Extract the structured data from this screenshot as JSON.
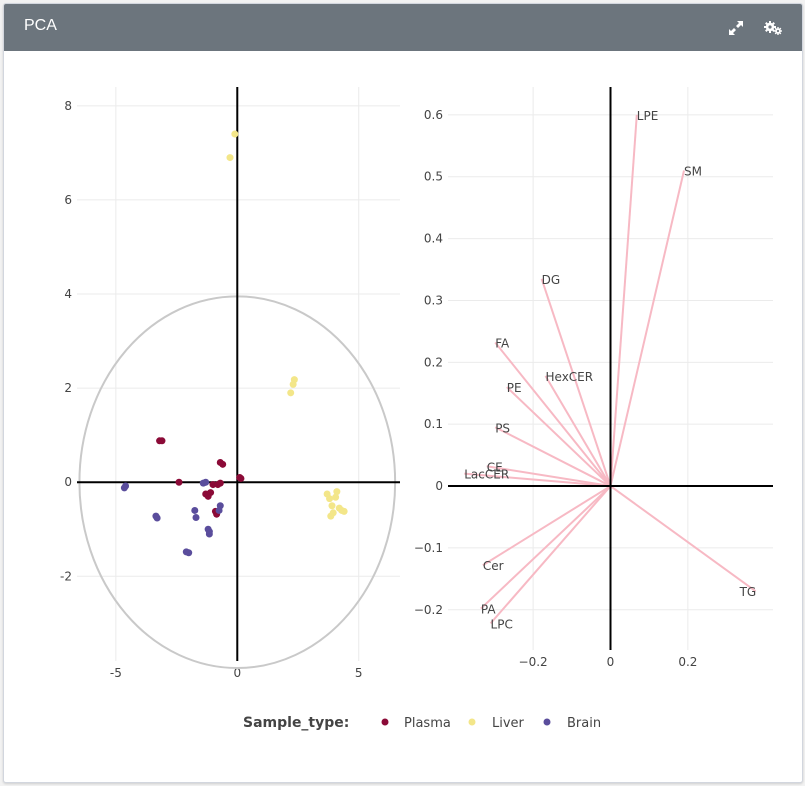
{
  "card": {
    "title": "PCA"
  },
  "icons": {
    "expand": "expand-icon",
    "settings": "gears-icon"
  },
  "colors": {
    "header_bg": "#6c757d",
    "plasma": "#8b0a37",
    "liver": "#f3e689",
    "brain": "#5a4d9c",
    "ellipse": "#c9c9c9",
    "loading_line": "#f7b9c4",
    "grid": "#ebebeb"
  },
  "legend": {
    "title": "Sample_type:",
    "items": [
      {
        "label": "Plasma",
        "color": "#8b0a37"
      },
      {
        "label": "Liver",
        "color": "#f3e689"
      },
      {
        "label": "Brain",
        "color": "#5a4d9c"
      }
    ]
  },
  "chart_data": [
    {
      "type": "scatter",
      "title": "",
      "xlabel": "",
      "ylabel": "",
      "xlim": [
        -6.6,
        6.7
      ],
      "ylim": [
        -3.8,
        8.4
      ],
      "xticks": [
        -5,
        0,
        5
      ],
      "yticks": [
        -2,
        0,
        2,
        4,
        6,
        8
      ],
      "grid": true,
      "zero_lines": true,
      "ellipse": {
        "cx": 0,
        "cy": 0,
        "rx": 6.5,
        "ry": 3.95
      },
      "series": [
        {
          "name": "Plasma",
          "color": "#8b0a37",
          "points": [
            [
              -3.2,
              0.88
            ],
            [
              -3.1,
              0.88
            ],
            [
              -2.4,
              0.0
            ],
            [
              -0.7,
              0.42
            ],
            [
              -0.6,
              0.38
            ],
            [
              -1.3,
              -0.25
            ],
            [
              -1.2,
              -0.3
            ],
            [
              -1.1,
              -0.22
            ],
            [
              -1.0,
              -0.05
            ],
            [
              -0.8,
              -0.05
            ],
            [
              -0.7,
              -0.02
            ],
            [
              -0.9,
              -0.62
            ],
            [
              -0.85,
              -0.68
            ],
            [
              0.1,
              0.1
            ],
            [
              0.15,
              0.08
            ]
          ]
        },
        {
          "name": "Liver",
          "color": "#f3e689",
          "points": [
            [
              -0.1,
              7.4
            ],
            [
              -0.3,
              6.9
            ],
            [
              2.35,
              2.18
            ],
            [
              2.3,
              2.08
            ],
            [
              2.2,
              1.9
            ],
            [
              3.7,
              -0.25
            ],
            [
              3.8,
              -0.35
            ],
            [
              3.9,
              -0.5
            ],
            [
              3.95,
              -0.65
            ],
            [
              3.85,
              -0.72
            ],
            [
              4.1,
              -0.2
            ],
            [
              4.2,
              -0.55
            ],
            [
              4.3,
              -0.6
            ],
            [
              4.4,
              -0.62
            ],
            [
              4.05,
              -0.32
            ]
          ]
        },
        {
          "name": "Brain",
          "color": "#5a4d9c",
          "points": [
            [
              -4.6,
              -0.08
            ],
            [
              -4.65,
              -0.12
            ],
            [
              -3.35,
              -0.72
            ],
            [
              -3.3,
              -0.76
            ],
            [
              -1.4,
              -0.02
            ],
            [
              -1.3,
              0.0
            ],
            [
              -1.75,
              -0.6
            ],
            [
              -1.7,
              -0.75
            ],
            [
              -1.2,
              -1.0
            ],
            [
              -1.15,
              -1.1
            ],
            [
              -1.15,
              -1.05
            ],
            [
              -0.7,
              -0.5
            ],
            [
              -0.75,
              -0.6
            ],
            [
              -2.1,
              -1.48
            ],
            [
              -2.0,
              -1.5
            ]
          ]
        }
      ]
    },
    {
      "type": "line",
      "title": "",
      "xlabel": "",
      "ylabel": "",
      "xlim": [
        -0.42,
        0.42
      ],
      "ylim": [
        -0.265,
        0.645
      ],
      "xticks": [
        -0.2,
        0,
        0.2
      ],
      "xtick_labels": [
        "−0.2",
        "0",
        "0.2"
      ],
      "yticks": [
        -0.2,
        -0.1,
        0,
        0.1,
        0.2,
        0.3,
        0.4,
        0.5,
        0.6
      ],
      "ytick_labels": [
        "−0.2",
        "−0.1",
        "0",
        "0.1",
        "0.2",
        "0.3",
        "0.4",
        "0.5",
        "0.6"
      ],
      "grid": true,
      "zero_lines": true,
      "line_color": "#f7b9c4",
      "vectors": [
        {
          "label": "LPE",
          "x": 0.068,
          "y": 0.6
        },
        {
          "label": "SM",
          "x": 0.19,
          "y": 0.51
        },
        {
          "label": "DG",
          "x": -0.178,
          "y": 0.335
        },
        {
          "label": "FA",
          "x": -0.298,
          "y": 0.232
        },
        {
          "label": "HexCER",
          "x": -0.168,
          "y": 0.178
        },
        {
          "label": "PE",
          "x": -0.268,
          "y": 0.16
        },
        {
          "label": "PS",
          "x": -0.298,
          "y": 0.095
        },
        {
          "label": "CE",
          "x": -0.32,
          "y": 0.032
        },
        {
          "label": "LacCER",
          "x": -0.378,
          "y": 0.02
        },
        {
          "label": "Cer",
          "x": -0.33,
          "y": -0.128
        },
        {
          "label": "PA",
          "x": -0.335,
          "y": -0.198
        },
        {
          "label": "LPC",
          "x": -0.31,
          "y": -0.222
        },
        {
          "label": "TG",
          "x": 0.375,
          "y": -0.17
        }
      ]
    }
  ]
}
